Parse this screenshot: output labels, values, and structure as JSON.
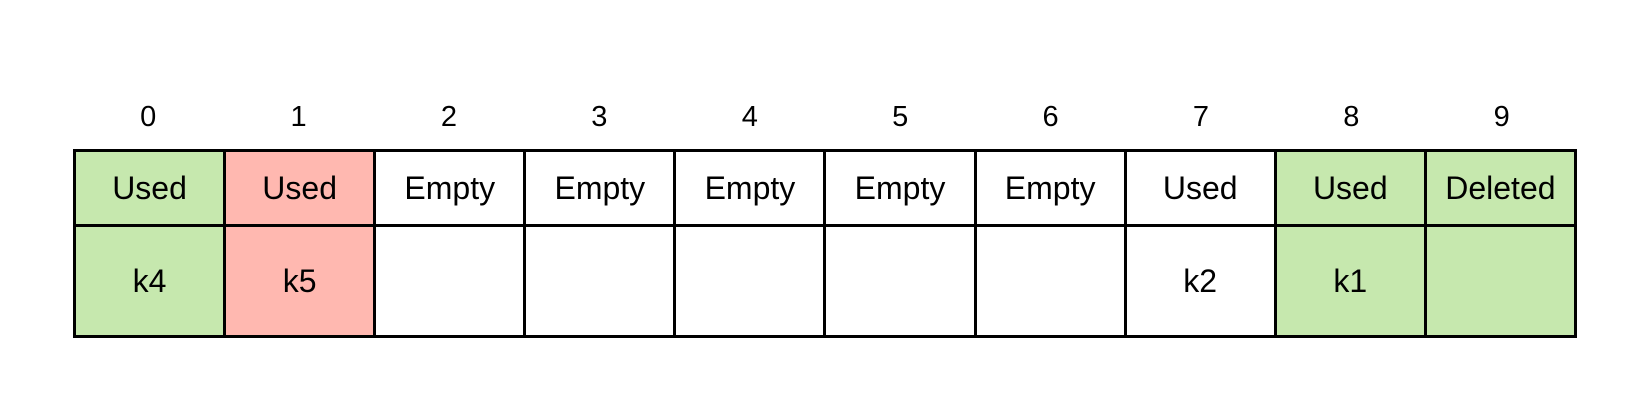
{
  "colors": {
    "highlight_green": "#c6e8ae",
    "highlight_red": "#ffb8b0",
    "default": "#ffffff",
    "border": "#000000"
  },
  "slots": [
    {
      "index": "0",
      "status": "Used",
      "key": "k4",
      "fill": "#c6e8ae"
    },
    {
      "index": "1",
      "status": "Used",
      "key": "k5",
      "fill": "#ffb8b0"
    },
    {
      "index": "2",
      "status": "Empty",
      "key": "",
      "fill": "#ffffff"
    },
    {
      "index": "3",
      "status": "Empty",
      "key": "",
      "fill": "#ffffff"
    },
    {
      "index": "4",
      "status": "Empty",
      "key": "",
      "fill": "#ffffff"
    },
    {
      "index": "5",
      "status": "Empty",
      "key": "",
      "fill": "#ffffff"
    },
    {
      "index": "6",
      "status": "Empty",
      "key": "",
      "fill": "#ffffff"
    },
    {
      "index": "7",
      "status": "Used",
      "key": "k2",
      "fill": "#ffffff"
    },
    {
      "index": "8",
      "status": "Used",
      "key": "k1",
      "fill": "#c6e8ae"
    },
    {
      "index": "9",
      "status": "Deleted",
      "key": "",
      "fill": "#c6e8ae"
    }
  ]
}
